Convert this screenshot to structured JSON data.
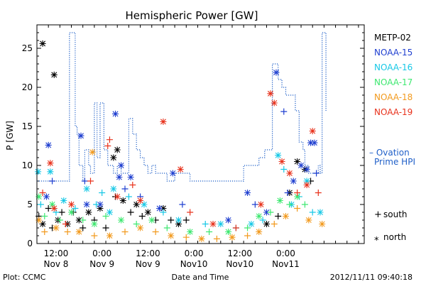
{
  "chart_data": {
    "type": "scatter",
    "title": "Hemispheric Power [GW]",
    "xlabel": "Date and Time",
    "ylabel": "P [GW]",
    "x_unit": "hours",
    "xlim": [
      0,
      85.5
    ],
    "ylim": [
      0,
      28
    ],
    "yticks": [
      0,
      5,
      10,
      15,
      20,
      25
    ],
    "xticks": [
      {
        "x": 5,
        "line1": "12:00",
        "line2": "Nov 8"
      },
      {
        "x": 17,
        "line1": "0:00",
        "line2": "Nov 9"
      },
      {
        "x": 29,
        "line1": "12:00",
        "line2": "Nov 9"
      },
      {
        "x": 41,
        "line1": "0:00",
        "line2": "Nov10"
      },
      {
        "x": 53,
        "line1": "12:00",
        "line2": "Nov10"
      },
      {
        "x": 65,
        "line1": "0:00",
        "line2": "Nov11"
      }
    ],
    "legend": {
      "satellites": [
        {
          "name": "METP-02",
          "color": "#000000"
        },
        {
          "name": "NOAA-15",
          "color": "#1f3fd0"
        },
        {
          "name": "NOAA-16",
          "color": "#17c8e6"
        },
        {
          "name": "NOAA-17",
          "color": "#3ee870"
        },
        {
          "name": "NOAA-18",
          "color": "#f29a1e"
        },
        {
          "name": "NOAA-19",
          "color": "#e8321c"
        }
      ],
      "model": {
        "line1": "– Ovation",
        "line2": "Prime HPI",
        "color": "#1f5fc8"
      },
      "markers": [
        {
          "symbol": "+",
          "label": "south"
        },
        {
          "symbol": "*",
          "label": "north"
        }
      ]
    },
    "ovation_hpi": [
      [
        0,
        8
      ],
      [
        8,
        8
      ],
      [
        8.5,
        27
      ],
      [
        9.5,
        27
      ],
      [
        10,
        15
      ],
      [
        10.5,
        14
      ],
      [
        11,
        10
      ],
      [
        12,
        8
      ],
      [
        12.5,
        12
      ],
      [
        13.5,
        10
      ],
      [
        14,
        9
      ],
      [
        15,
        18
      ],
      [
        15.7,
        11
      ],
      [
        16.5,
        18
      ],
      [
        17.5,
        12
      ],
      [
        18.5,
        10
      ],
      [
        19,
        10
      ],
      [
        20,
        9
      ],
      [
        21,
        10
      ],
      [
        22,
        9
      ],
      [
        23,
        9
      ],
      [
        24,
        16
      ],
      [
        25,
        14
      ],
      [
        26,
        12
      ],
      [
        27,
        11
      ],
      [
        28,
        10
      ],
      [
        29,
        9
      ],
      [
        30,
        10
      ],
      [
        31,
        9
      ],
      [
        33,
        9
      ],
      [
        34,
        8
      ],
      [
        36,
        9
      ],
      [
        38,
        9
      ],
      [
        40,
        8
      ],
      [
        53,
        8
      ],
      [
        54,
        10
      ],
      [
        56,
        10
      ],
      [
        57,
        10
      ],
      [
        58,
        11
      ],
      [
        59,
        11
      ],
      [
        59.5,
        12
      ],
      [
        61,
        12
      ],
      [
        61.5,
        23
      ],
      [
        62.5,
        23
      ],
      [
        63,
        21
      ],
      [
        64,
        20
      ],
      [
        65,
        19
      ],
      [
        67,
        19
      ],
      [
        67.5,
        17
      ],
      [
        68.5,
        13
      ],
      [
        69.5,
        12
      ],
      [
        70,
        10
      ],
      [
        71,
        9
      ],
      [
        73,
        9
      ],
      [
        73.5,
        10
      ],
      [
        74,
        9
      ],
      [
        74.5,
        27
      ],
      [
        75.5,
        27
      ],
      [
        75.5,
        17
      ]
    ],
    "series": [
      {
        "name": "METP-02",
        "color": "#000000",
        "points": [
          {
            "x": 1.5,
            "y": 25.6,
            "m": "*"
          },
          {
            "x": 4.5,
            "y": 21.6,
            "m": "*"
          },
          {
            "x": 0.5,
            "y": 3.5,
            "m": "+"
          },
          {
            "x": 1.5,
            "y": 2.5,
            "m": "*"
          },
          {
            "x": 3,
            "y": 4.5,
            "m": "+"
          },
          {
            "x": 4,
            "y": 2,
            "m": "+"
          },
          {
            "x": 5.5,
            "y": 3,
            "m": "*"
          },
          {
            "x": 6.5,
            "y": 4,
            "m": "+"
          },
          {
            "x": 8,
            "y": 2.5,
            "m": "*"
          },
          {
            "x": 9.5,
            "y": 4,
            "m": "+"
          },
          {
            "x": 11,
            "y": 3,
            "m": "*"
          },
          {
            "x": 12,
            "y": 2,
            "m": "+"
          },
          {
            "x": 13.5,
            "y": 4,
            "m": "*"
          },
          {
            "x": 15,
            "y": 3,
            "m": "+"
          },
          {
            "x": 16.5,
            "y": 4.5,
            "m": "*"
          },
          {
            "x": 18,
            "y": 2,
            "m": "+"
          },
          {
            "x": 20,
            "y": 11,
            "m": "*"
          },
          {
            "x": 21,
            "y": 12,
            "m": "*"
          },
          {
            "x": 20.5,
            "y": 6,
            "m": "+"
          },
          {
            "x": 22.5,
            "y": 5.5,
            "m": "*"
          },
          {
            "x": 24.5,
            "y": 4,
            "m": "+"
          },
          {
            "x": 26,
            "y": 5,
            "m": "*"
          },
          {
            "x": 27.5,
            "y": 3.5,
            "m": "+"
          },
          {
            "x": 29,
            "y": 4,
            "m": "*"
          },
          {
            "x": 31,
            "y": 3,
            "m": "+"
          },
          {
            "x": 33,
            "y": 4.5,
            "m": "*"
          },
          {
            "x": 35,
            "y": 3,
            "m": "+"
          },
          {
            "x": 37,
            "y": 2.5,
            "m": "*"
          },
          {
            "x": 39,
            "y": 3,
            "m": "+"
          },
          {
            "x": 60,
            "y": 2.5,
            "m": "*"
          },
          {
            "x": 63,
            "y": 3.5,
            "m": "+"
          },
          {
            "x": 66,
            "y": 6.5,
            "m": "*"
          },
          {
            "x": 68,
            "y": 10.5,
            "m": "*"
          },
          {
            "x": 70,
            "y": 9.5,
            "m": "*"
          },
          {
            "x": 71.5,
            "y": 8,
            "m": "+"
          }
        ]
      },
      {
        "name": "NOAA-15",
        "color": "#1f3fd0",
        "points": [
          {
            "x": 3,
            "y": 12.6,
            "m": "*"
          },
          {
            "x": 4,
            "y": 8,
            "m": "+"
          },
          {
            "x": 2.5,
            "y": 6,
            "m": "*"
          },
          {
            "x": 11.5,
            "y": 13.8,
            "m": "*"
          },
          {
            "x": 12.5,
            "y": 8,
            "m": "+"
          },
          {
            "x": 13,
            "y": 5,
            "m": "*"
          },
          {
            "x": 16.5,
            "y": 5,
            "m": "*"
          },
          {
            "x": 20.5,
            "y": 16.6,
            "m": "*"
          },
          {
            "x": 21.5,
            "y": 8.5,
            "m": "*"
          },
          {
            "x": 22,
            "y": 10,
            "m": "*"
          },
          {
            "x": 23,
            "y": 7,
            "m": "+"
          },
          {
            "x": 24.5,
            "y": 8.5,
            "m": "*"
          },
          {
            "x": 27,
            "y": 6,
            "m": "+"
          },
          {
            "x": 32,
            "y": 4.5,
            "m": "*"
          },
          {
            "x": 35.5,
            "y": 9,
            "m": "*"
          },
          {
            "x": 38,
            "y": 5,
            "m": "+"
          },
          {
            "x": 50,
            "y": 3,
            "m": "*"
          },
          {
            "x": 55,
            "y": 6.5,
            "m": "*"
          },
          {
            "x": 57,
            "y": 5,
            "m": "+"
          },
          {
            "x": 60,
            "y": 4,
            "m": "*"
          },
          {
            "x": 62.5,
            "y": 21.9,
            "m": "*"
          },
          {
            "x": 64.5,
            "y": 16.9,
            "m": "+"
          },
          {
            "x": 65.5,
            "y": 6.5,
            "m": "+"
          },
          {
            "x": 67,
            "y": 8,
            "m": "*"
          },
          {
            "x": 69,
            "y": 10,
            "m": "*"
          },
          {
            "x": 70.5,
            "y": 9.5,
            "m": "*"
          },
          {
            "x": 71.5,
            "y": 12.9,
            "m": "*"
          },
          {
            "x": 72.5,
            "y": 12.9,
            "m": "*"
          },
          {
            "x": 73,
            "y": 9,
            "m": "+"
          }
        ]
      },
      {
        "name": "NOAA-16",
        "color": "#17c8e6",
        "points": [
          {
            "x": 0.3,
            "y": 9.2,
            "m": "*"
          },
          {
            "x": 1,
            "y": 5,
            "m": "+"
          },
          {
            "x": 3.5,
            "y": 9.2,
            "m": "*"
          },
          {
            "x": 5,
            "y": 4,
            "m": "+"
          },
          {
            "x": 7,
            "y": 5.5,
            "m": "*"
          },
          {
            "x": 10,
            "y": 4.5,
            "m": "+"
          },
          {
            "x": 13,
            "y": 7,
            "m": "*"
          },
          {
            "x": 15.5,
            "y": 5,
            "m": "+"
          },
          {
            "x": 17,
            "y": 6.5,
            "m": "+"
          },
          {
            "x": 19,
            "y": 4,
            "m": "*"
          },
          {
            "x": 20,
            "y": 7,
            "m": "*"
          },
          {
            "x": 24,
            "y": 6,
            "m": "+"
          },
          {
            "x": 28,
            "y": 5,
            "m": "*"
          },
          {
            "x": 33,
            "y": 4,
            "m": "+"
          },
          {
            "x": 37,
            "y": 3,
            "m": "*"
          },
          {
            "x": 44,
            "y": 2.5,
            "m": "+"
          },
          {
            "x": 48,
            "y": 2.5,
            "m": "*"
          },
          {
            "x": 52,
            "y": 2,
            "m": "+"
          },
          {
            "x": 56,
            "y": 2.5,
            "m": "*"
          },
          {
            "x": 59,
            "y": 3,
            "m": "+"
          },
          {
            "x": 63,
            "y": 11.3,
            "m": "*"
          },
          {
            "x": 64.5,
            "y": 9.5,
            "m": "+"
          },
          {
            "x": 66.5,
            "y": 5,
            "m": "*"
          },
          {
            "x": 68.5,
            "y": 6,
            "m": "+"
          },
          {
            "x": 70.5,
            "y": 8,
            "m": "*"
          },
          {
            "x": 72,
            "y": 4,
            "m": "+"
          },
          {
            "x": 74,
            "y": 4,
            "m": "*"
          }
        ]
      },
      {
        "name": "NOAA-17",
        "color": "#3ee870",
        "points": [
          {
            "x": 0.5,
            "y": 6,
            "m": "*"
          },
          {
            "x": 2,
            "y": 3.5,
            "m": "+"
          },
          {
            "x": 4,
            "y": 5,
            "m": "*"
          },
          {
            "x": 6,
            "y": 3,
            "m": "+"
          },
          {
            "x": 9,
            "y": 4,
            "m": "*"
          },
          {
            "x": 12,
            "y": 3,
            "m": "+"
          },
          {
            "x": 15,
            "y": 2.5,
            "m": "*"
          },
          {
            "x": 18,
            "y": 3.5,
            "m": "+"
          },
          {
            "x": 22,
            "y": 3,
            "m": "*"
          },
          {
            "x": 26,
            "y": 2.5,
            "m": "+"
          },
          {
            "x": 30,
            "y": 3,
            "m": "*"
          },
          {
            "x": 34,
            "y": 2,
            "m": "+"
          },
          {
            "x": 40,
            "y": 1.5,
            "m": "*"
          },
          {
            "x": 45,
            "y": 1.5,
            "m": "+"
          },
          {
            "x": 50,
            "y": 1.5,
            "m": "*"
          },
          {
            "x": 55,
            "y": 2,
            "m": "+"
          },
          {
            "x": 58,
            "y": 3.5,
            "m": "*"
          },
          {
            "x": 61,
            "y": 4,
            "m": "+"
          },
          {
            "x": 63.5,
            "y": 5.5,
            "m": "*"
          },
          {
            "x": 66,
            "y": 5,
            "m": "+"
          },
          {
            "x": 68,
            "y": 6,
            "m": "*"
          },
          {
            "x": 70,
            "y": 5,
            "m": "+"
          }
        ]
      },
      {
        "name": "NOAA-18",
        "color": "#f29a1e",
        "points": [
          {
            "x": 0.5,
            "y": 3,
            "m": "*"
          },
          {
            "x": 2,
            "y": 1.5,
            "m": "+"
          },
          {
            "x": 5,
            "y": 2,
            "m": "*"
          },
          {
            "x": 8,
            "y": 1.5,
            "m": "+"
          },
          {
            "x": 11,
            "y": 1.5,
            "m": "*"
          },
          {
            "x": 14.5,
            "y": 11.7,
            "m": "*"
          },
          {
            "x": 15,
            "y": 1,
            "m": "+"
          },
          {
            "x": 19,
            "y": 1,
            "m": "*"
          },
          {
            "x": 23,
            "y": 1.5,
            "m": "+"
          },
          {
            "x": 27,
            "y": 2,
            "m": "*"
          },
          {
            "x": 31,
            "y": 1.5,
            "m": "+"
          },
          {
            "x": 35,
            "y": 1,
            "m": "*"
          },
          {
            "x": 39,
            "y": 0.8,
            "m": "+"
          },
          {
            "x": 43,
            "y": 0.6,
            "m": "*"
          },
          {
            "x": 47,
            "y": 0.6,
            "m": "+"
          },
          {
            "x": 51,
            "y": 0.8,
            "m": "*"
          },
          {
            "x": 55,
            "y": 1,
            "m": "+"
          },
          {
            "x": 58,
            "y": 1.5,
            "m": "*"
          },
          {
            "x": 62,
            "y": 2.5,
            "m": "+"
          },
          {
            "x": 65,
            "y": 3.5,
            "m": "*"
          },
          {
            "x": 68,
            "y": 4.5,
            "m": "+"
          },
          {
            "x": 71,
            "y": 3,
            "m": "*"
          },
          {
            "x": 74.5,
            "y": 2.5,
            "m": "*"
          }
        ]
      },
      {
        "name": "NOAA-19",
        "color": "#e8321c",
        "points": [
          {
            "x": 1.5,
            "y": 6.5,
            "m": "+"
          },
          {
            "x": 3.5,
            "y": 10.3,
            "m": "*"
          },
          {
            "x": 4.5,
            "y": 4.5,
            "m": "*"
          },
          {
            "x": 7.5,
            "y": 2.5,
            "m": "+"
          },
          {
            "x": 9,
            "y": 5,
            "m": "*"
          },
          {
            "x": 14,
            "y": 8,
            "m": "+"
          },
          {
            "x": 18.5,
            "y": 12.5,
            "m": "+"
          },
          {
            "x": 19,
            "y": 13.3,
            "m": "+"
          },
          {
            "x": 21,
            "y": 6,
            "m": "*"
          },
          {
            "x": 25,
            "y": 7.5,
            "m": "+"
          },
          {
            "x": 27,
            "y": 5.5,
            "m": "*"
          },
          {
            "x": 33,
            "y": 15.6,
            "m": "*"
          },
          {
            "x": 37.5,
            "y": 9.5,
            "m": "*"
          },
          {
            "x": 40,
            "y": 4,
            "m": "+"
          },
          {
            "x": 46,
            "y": 2.5,
            "m": "*"
          },
          {
            "x": 52,
            "y": 2,
            "m": "+"
          },
          {
            "x": 58.5,
            "y": 5,
            "m": "*"
          },
          {
            "x": 61,
            "y": 19.2,
            "m": "*"
          },
          {
            "x": 62,
            "y": 18,
            "m": "*"
          },
          {
            "x": 64,
            "y": 10.5,
            "m": "*"
          },
          {
            "x": 66,
            "y": 9,
            "m": "*"
          },
          {
            "x": 68,
            "y": 6.5,
            "m": "+"
          },
          {
            "x": 70.5,
            "y": 7.5,
            "m": "*"
          },
          {
            "x": 72,
            "y": 14.4,
            "m": "*"
          },
          {
            "x": 73.5,
            "y": 6.5,
            "m": "+"
          }
        ]
      }
    ]
  },
  "footer": {
    "left": "Plot: CCMC",
    "center": "Date and Time",
    "right": "2012/11/11 09:40:18"
  }
}
